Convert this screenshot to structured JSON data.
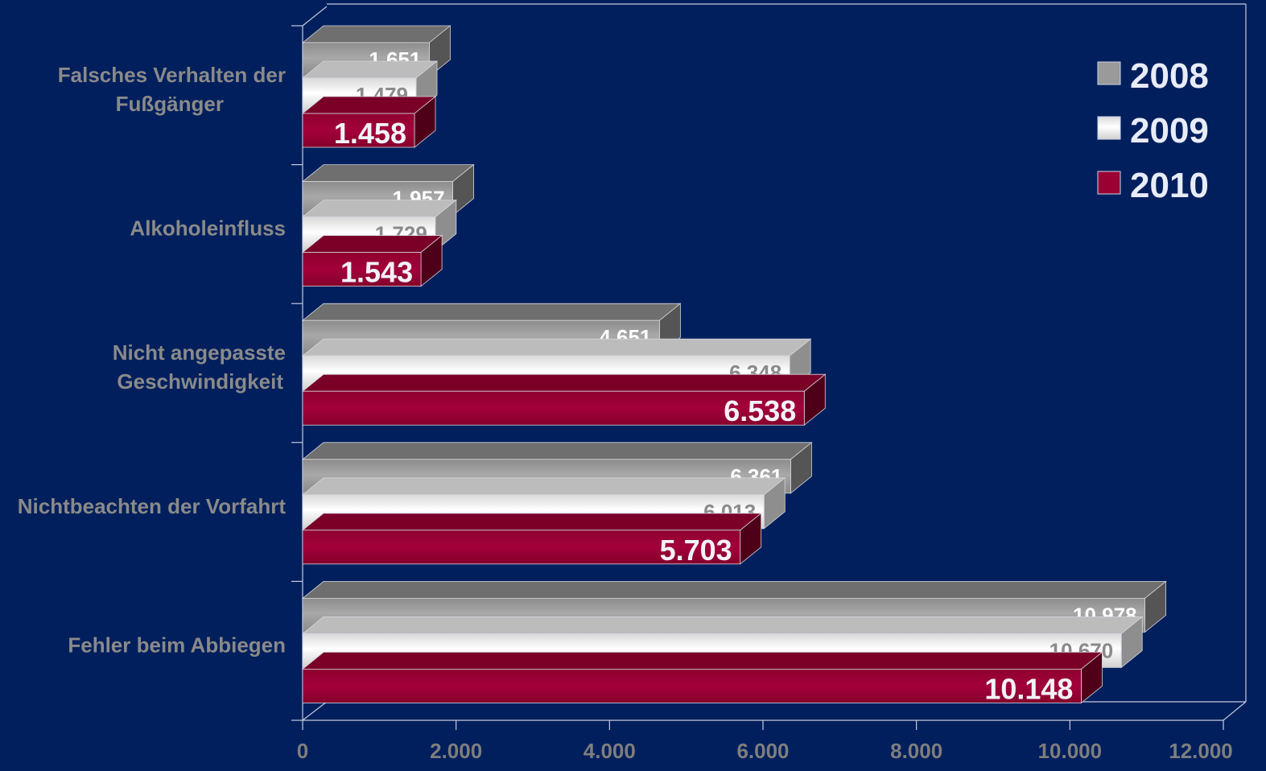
{
  "colors": {
    "background": "#001f5c",
    "series_2008": "#9a9a9a",
    "series_2009": "#f4f4f4",
    "series_2010": "#9b0033",
    "category_text": "#8a8a8a",
    "axis_text": "#7e7e7e",
    "legend_text": "#e8ecf8"
  },
  "chart_data": {
    "type": "bar",
    "orientation": "horizontal",
    "categories": [
      [
        "Falsches Verhalten der",
        "Fußgänger"
      ],
      [
        "Alkoholeinfluss"
      ],
      [
        "Nicht angepasste",
        "Geschwindigkeit"
      ],
      [
        "Nichtbeachten der Vorfahrt"
      ],
      [
        "Fehler  beim Abbiegen"
      ]
    ],
    "series": [
      {
        "name": "2008",
        "values": [
          1651,
          1957,
          4651,
          6361,
          10978
        ],
        "labels": [
          "1.651",
          "1.957",
          "4.651",
          "6.361",
          "10.978"
        ]
      },
      {
        "name": "2009",
        "values": [
          1479,
          1729,
          6348,
          6013,
          10670
        ],
        "labels": [
          "1.479",
          "1.729",
          "6.348",
          "6.013",
          "10.670"
        ]
      },
      {
        "name": "2010",
        "values": [
          1458,
          1543,
          6538,
          5703,
          10148
        ],
        "labels": [
          "1.458",
          "1.543",
          "6.538",
          "5.703",
          "10.148"
        ]
      }
    ],
    "xlim": [
      0,
      12000
    ],
    "xticks": [
      0,
      2000,
      4000,
      6000,
      8000,
      10000,
      12000
    ],
    "xtick_labels": [
      "0",
      "2.000",
      "4.000",
      "6.000",
      "8.000",
      "10.000",
      "12.000"
    ],
    "legend": {
      "position": "top-right",
      "entries": [
        "2008",
        "2009",
        "2010"
      ]
    },
    "style": "3d",
    "grid": false
  }
}
